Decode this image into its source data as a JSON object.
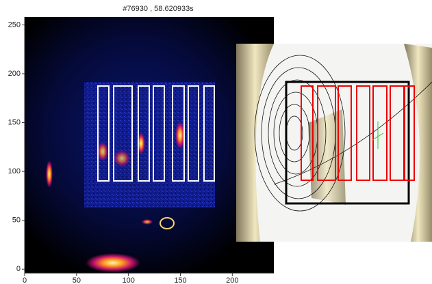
{
  "chart_data": {
    "type": "image",
    "title": "#76930 , 58.620933s",
    "xlim": [
      0,
      240
    ],
    "ylim": [
      -4,
      258
    ],
    "xticks": [
      0,
      50,
      100,
      150,
      200
    ],
    "yticks": [
      0,
      50,
      100,
      150,
      200,
      250
    ]
  }
}
